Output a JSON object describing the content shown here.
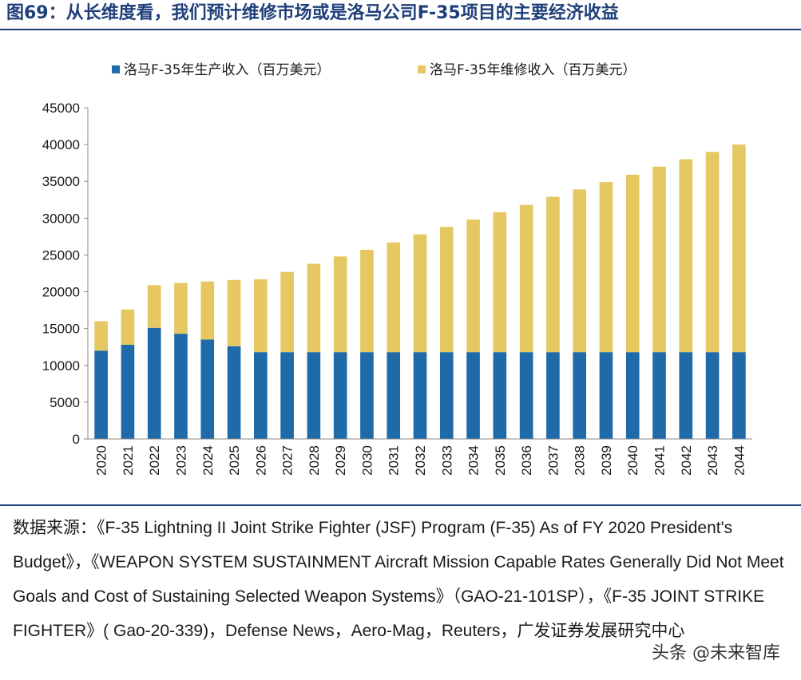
{
  "figure": {
    "title": "图69：从长维度看，我们预计维修市场或是洛马公司F-35项目的主要经济收益",
    "source_text": "数据来源：《F-35 Lightning II Joint Strike Fighter (JSF) Program (F-35) As of FY 2020 President's Budget》，《WEAPON SYSTEM SUSTAINMENT Aircraft Mission Capable Rates Generally Did Not Meet Goals and Cost of Sustaining Selected Weapon Systems》（GAO-21-101SP），《F-35 JOINT STRIKE FIGHTER》( Gao-20-339)，Defense News，Aero-Mag，Reuters，广发证券发展研究中心",
    "watermark": "头条 @未来智库"
  },
  "chart_data": {
    "type": "bar",
    "stacked": true,
    "title": "",
    "xlabel": "",
    "ylabel": "",
    "ylim": [
      0,
      45000
    ],
    "yticks": [
      0,
      5000,
      10000,
      15000,
      20000,
      25000,
      30000,
      35000,
      40000,
      45000
    ],
    "legend_position": "top",
    "grid": false,
    "categories": [
      "2020",
      "2021",
      "2022",
      "2023",
      "2024",
      "2025",
      "2026",
      "2027",
      "2028",
      "2029",
      "2030",
      "2031",
      "2032",
      "2033",
      "2034",
      "2035",
      "2036",
      "2037",
      "2038",
      "2039",
      "2040",
      "2041",
      "2042",
      "2043",
      "2044"
    ],
    "series": [
      {
        "name": "洛马F-35年生产收入（百万美元）",
        "color": "#1f6aa8",
        "values": [
          12000,
          12800,
          15100,
          14300,
          13500,
          12600,
          11800,
          11800,
          11800,
          11800,
          11800,
          11800,
          11800,
          11800,
          11800,
          11800,
          11800,
          11800,
          11800,
          11800,
          11800,
          11800,
          11800,
          11800,
          11800
        ]
      },
      {
        "name": "洛马F-35年维修收入（百万美元）",
        "color": "#e6c862",
        "values": [
          4000,
          4800,
          5800,
          6900,
          7900,
          9000,
          9900,
          10900,
          12000,
          13000,
          13900,
          14900,
          16000,
          17000,
          18000,
          19000,
          20000,
          21100,
          22100,
          23100,
          24100,
          25200,
          26200,
          27200,
          28200
        ]
      }
    ]
  }
}
